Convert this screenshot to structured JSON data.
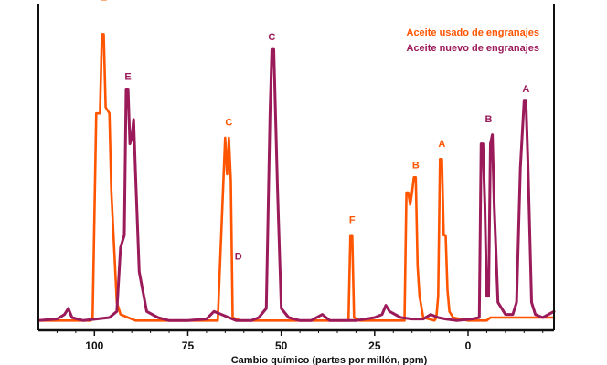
{
  "chart_data": {
    "type": "line",
    "title": "",
    "xlabel": "Cambio químico (partes por millón, ppm)",
    "ylabel": "",
    "xlim": [
      115,
      -23
    ],
    "ylim": [
      0,
      100
    ],
    "x_reversed": true,
    "grid": false,
    "legend_position": "top-right",
    "x_ticks": [
      {
        "value": 100,
        "label": "100"
      },
      {
        "value": 75,
        "label": "75"
      },
      {
        "value": 50,
        "label": "50"
      },
      {
        "value": 25,
        "label": "25"
      },
      {
        "value": 0,
        "label": "0"
      }
    ],
    "series": [
      {
        "name": "Aceite usado de engranajes",
        "color": "#ff5500",
        "points": [
          [
            115,
            2
          ],
          [
            101,
            2
          ],
          [
            100.5,
            3
          ],
          [
            99.5,
            70
          ],
          [
            98.5,
            70
          ],
          [
            98,
            96
          ],
          [
            97.5,
            96
          ],
          [
            97,
            72
          ],
          [
            96,
            70
          ],
          [
            95.5,
            45
          ],
          [
            94,
            8
          ],
          [
            93,
            4
          ],
          [
            91,
            3
          ],
          [
            89,
            2
          ],
          [
            80,
            2
          ],
          [
            67,
            2
          ],
          [
            65,
            62
          ],
          [
            64.5,
            50
          ],
          [
            64,
            62
          ],
          [
            63.5,
            48
          ],
          [
            63,
            3
          ],
          [
            61,
            2
          ],
          [
            32,
            2
          ],
          [
            31.5,
            30
          ],
          [
            31,
            30
          ],
          [
            30.5,
            3
          ],
          [
            29,
            2
          ],
          [
            17,
            2
          ],
          [
            16.5,
            44
          ],
          [
            16,
            44
          ],
          [
            15.5,
            40
          ],
          [
            15,
            44
          ],
          [
            14.5,
            49
          ],
          [
            14,
            49
          ],
          [
            13.5,
            20
          ],
          [
            13,
            10
          ],
          [
            12,
            3
          ],
          [
            9,
            2
          ],
          [
            8.5,
            3
          ],
          [
            8,
            10
          ],
          [
            7.5,
            55
          ],
          [
            7,
            55
          ],
          [
            6.5,
            30
          ],
          [
            6,
            30
          ],
          [
            5.5,
            12
          ],
          [
            5,
            5
          ],
          [
            4,
            3
          ],
          [
            0,
            2
          ],
          [
            -5,
            2
          ],
          [
            -6,
            3
          ],
          [
            -23,
            3
          ]
        ]
      },
      {
        "name": "Aceite nuevo de engranajes",
        "color": "#9b1b5a",
        "points": [
          [
            115,
            2
          ],
          [
            110,
            2.5
          ],
          [
            108,
            4
          ],
          [
            107,
            6
          ],
          [
            106,
            3
          ],
          [
            103,
            2
          ],
          [
            96,
            3
          ],
          [
            94,
            5
          ],
          [
            93,
            26
          ],
          [
            92,
            30
          ],
          [
            91.5,
            78
          ],
          [
            91,
            78
          ],
          [
            90.5,
            60
          ],
          [
            90,
            62
          ],
          [
            89.5,
            68
          ],
          [
            89,
            50
          ],
          [
            88,
            18
          ],
          [
            86,
            5
          ],
          [
            83,
            3
          ],
          [
            80,
            2
          ],
          [
            75,
            2
          ],
          [
            70,
            2.5
          ],
          [
            68,
            5
          ],
          [
            66,
            4
          ],
          [
            64,
            3
          ],
          [
            62,
            2
          ],
          [
            58,
            2
          ],
          [
            56,
            3
          ],
          [
            54,
            6
          ],
          [
            53,
            70
          ],
          [
            52.5,
            91
          ],
          [
            52,
            91
          ],
          [
            51,
            45
          ],
          [
            50,
            6
          ],
          [
            48,
            3
          ],
          [
            45,
            2
          ],
          [
            42,
            2
          ],
          [
            39,
            4
          ],
          [
            37,
            2
          ],
          [
            30,
            2
          ],
          [
            25,
            3
          ],
          [
            23,
            4
          ],
          [
            22,
            7
          ],
          [
            21,
            5
          ],
          [
            18,
            3
          ],
          [
            15,
            2.5
          ],
          [
            12,
            2.5
          ],
          [
            10,
            4
          ],
          [
            8,
            3
          ],
          [
            6,
            2.5
          ],
          [
            3,
            2
          ],
          [
            -1,
            2.5
          ],
          [
            -3,
            3
          ],
          [
            -3.5,
            60
          ],
          [
            -4,
            60
          ],
          [
            -4.5,
            40
          ],
          [
            -5,
            10
          ],
          [
            -5.5,
            10
          ],
          [
            -6,
            60
          ],
          [
            -6.5,
            63
          ],
          [
            -7,
            40
          ],
          [
            -8,
            8
          ],
          [
            -10,
            4
          ],
          [
            -12,
            4
          ],
          [
            -13,
            8
          ],
          [
            -14,
            52
          ],
          [
            -15,
            74
          ],
          [
            -15.5,
            74
          ],
          [
            -16,
            55
          ],
          [
            -17,
            8
          ],
          [
            -18,
            4
          ],
          [
            -20,
            3
          ],
          [
            -23,
            5
          ]
        ]
      }
    ],
    "annotations": [
      {
        "text": "E",
        "series": 0,
        "x": 97.5,
        "y": 107
      },
      {
        "text": "E",
        "series": 1,
        "x": 91,
        "y": 81
      },
      {
        "text": "C",
        "series": 0,
        "x": 64,
        "y": 66
      },
      {
        "text": "D",
        "series": 1,
        "x": 61.5,
        "y": 22
      },
      {
        "text": "C",
        "series": 1,
        "x": 52.5,
        "y": 94
      },
      {
        "text": "F",
        "series": 0,
        "x": 31,
        "y": 34
      },
      {
        "text": "B",
        "series": 0,
        "x": 14,
        "y": 52
      },
      {
        "text": "A",
        "series": 0,
        "x": 7,
        "y": 59
      },
      {
        "text": "B",
        "series": 1,
        "x": -5.5,
        "y": 67
      },
      {
        "text": "A",
        "series": 1,
        "x": -15.5,
        "y": 77
      }
    ]
  }
}
